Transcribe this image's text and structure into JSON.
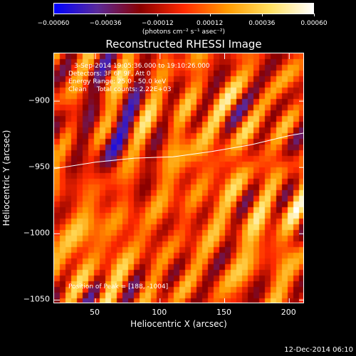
{
  "colorbar": {
    "ticks": [
      "-0.00060",
      "-0.00036",
      "-0.00012",
      "0.00012",
      "0.00036",
      "0.00060"
    ],
    "unit": "(photons cm⁻² s⁻¹ asec⁻²)",
    "colors": [
      "#0000ff",
      "#5a2a9a",
      "#8a0000",
      "#ff2a00",
      "#ff9a00",
      "#ffe060",
      "#ffffff"
    ]
  },
  "chart_data": {
    "type": "heatmap",
    "title": "Reconstructed RHESSI Image",
    "xlabel": "Heliocentric X (arcsec)",
    "ylabel": "Heliocentric Y (arcsec)",
    "xlim": [
      18,
      212
    ],
    "ylim": [
      -1053,
      -864
    ],
    "x_ticks": [
      "50",
      "100",
      "150",
      "200"
    ],
    "y_ticks": [
      "-900",
      "-950",
      "-1000",
      "-1050"
    ],
    "colorbar_range": [
      -0.0006,
      0.0006
    ],
    "annotations": [
      "3-Sep-2014 19:05:36.000 to 19:10:26.000",
      "Detectors: 3F 6F 9F, Att 0",
      "Energy Range: 25.0 - 50.0 keV",
      "Clean     Total counts: 2.22E+03"
    ],
    "peak_label": "Position of Peak = [188, -1004]",
    "limb_curve": {
      "x": [
        18,
        50,
        80,
        110,
        140,
        170,
        200,
        212
      ],
      "y": [
        -951,
        -946,
        -943,
        -942,
        -938,
        -933,
        -926,
        -924
      ]
    }
  },
  "footer": "12-Dec-2014 06:10"
}
